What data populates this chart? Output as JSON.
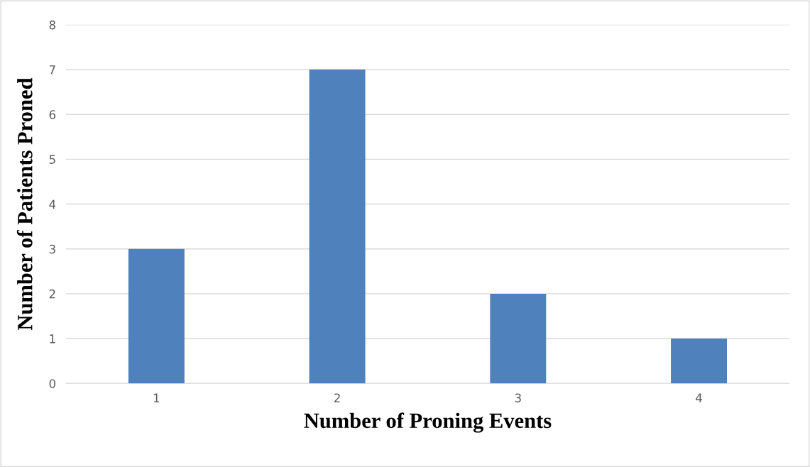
{
  "chart_data": {
    "type": "bar",
    "xlabel": "Number of Proning Events",
    "ylabel": "Number of Patients Proned",
    "categories": [
      "1",
      "2",
      "3",
      "4"
    ],
    "values": [
      3,
      7,
      2,
      1
    ],
    "color": "#4f81bd",
    "ylim": [
      0,
      8
    ],
    "yticks": [
      0,
      1,
      2,
      3,
      4,
      5,
      6,
      7,
      8
    ],
    "grid": "y"
  }
}
